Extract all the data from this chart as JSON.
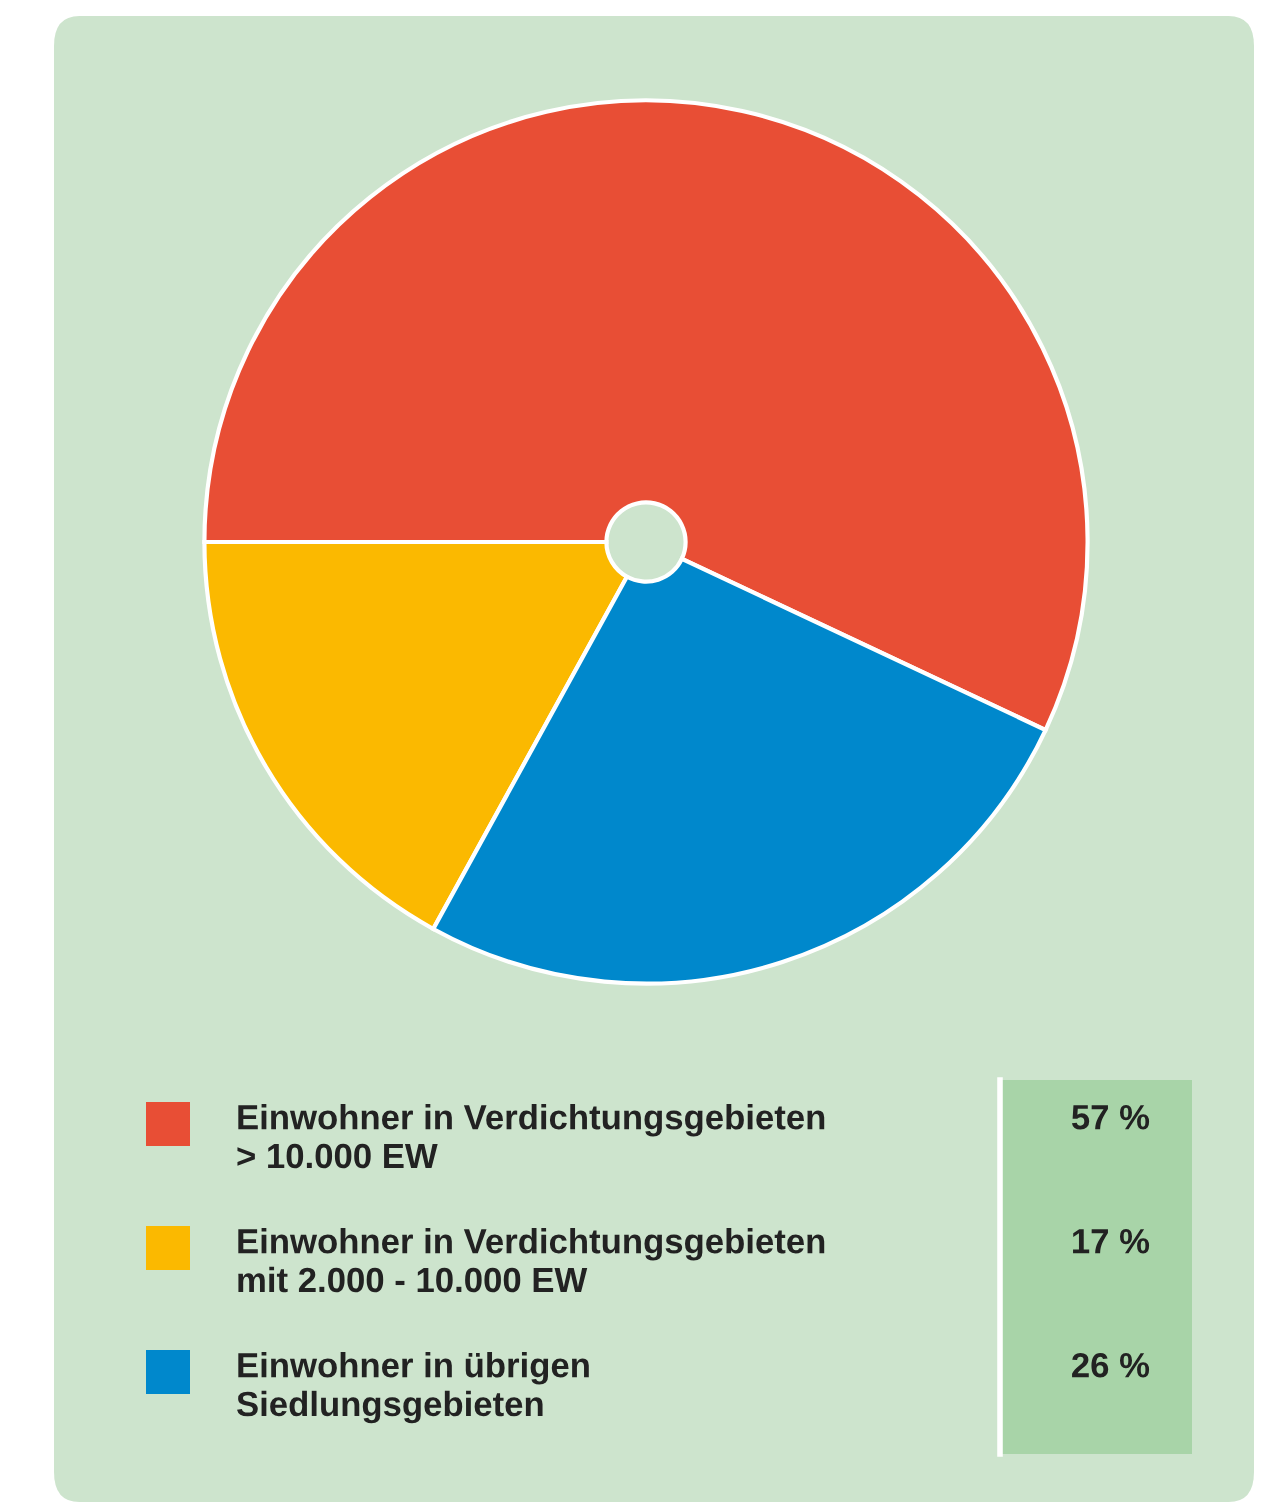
{
  "chart_data": {
    "type": "pie",
    "categories": [
      "Einwohner in Verdichtungsgebieten\n> 10.000 EW",
      "Einwohner in Verdichtungsgebieten\nmit 2.000 - 10.000 EW",
      "Einwohner in übrigen\nSiedlungsgebieten"
    ],
    "values": [
      57,
      17,
      26
    ],
    "colors": [
      "#e84e35",
      "#fbb900",
      "#0088cc"
    ],
    "value_labels": [
      "57 %",
      "17 %",
      "26 %"
    ],
    "legend": "bottom"
  }
}
